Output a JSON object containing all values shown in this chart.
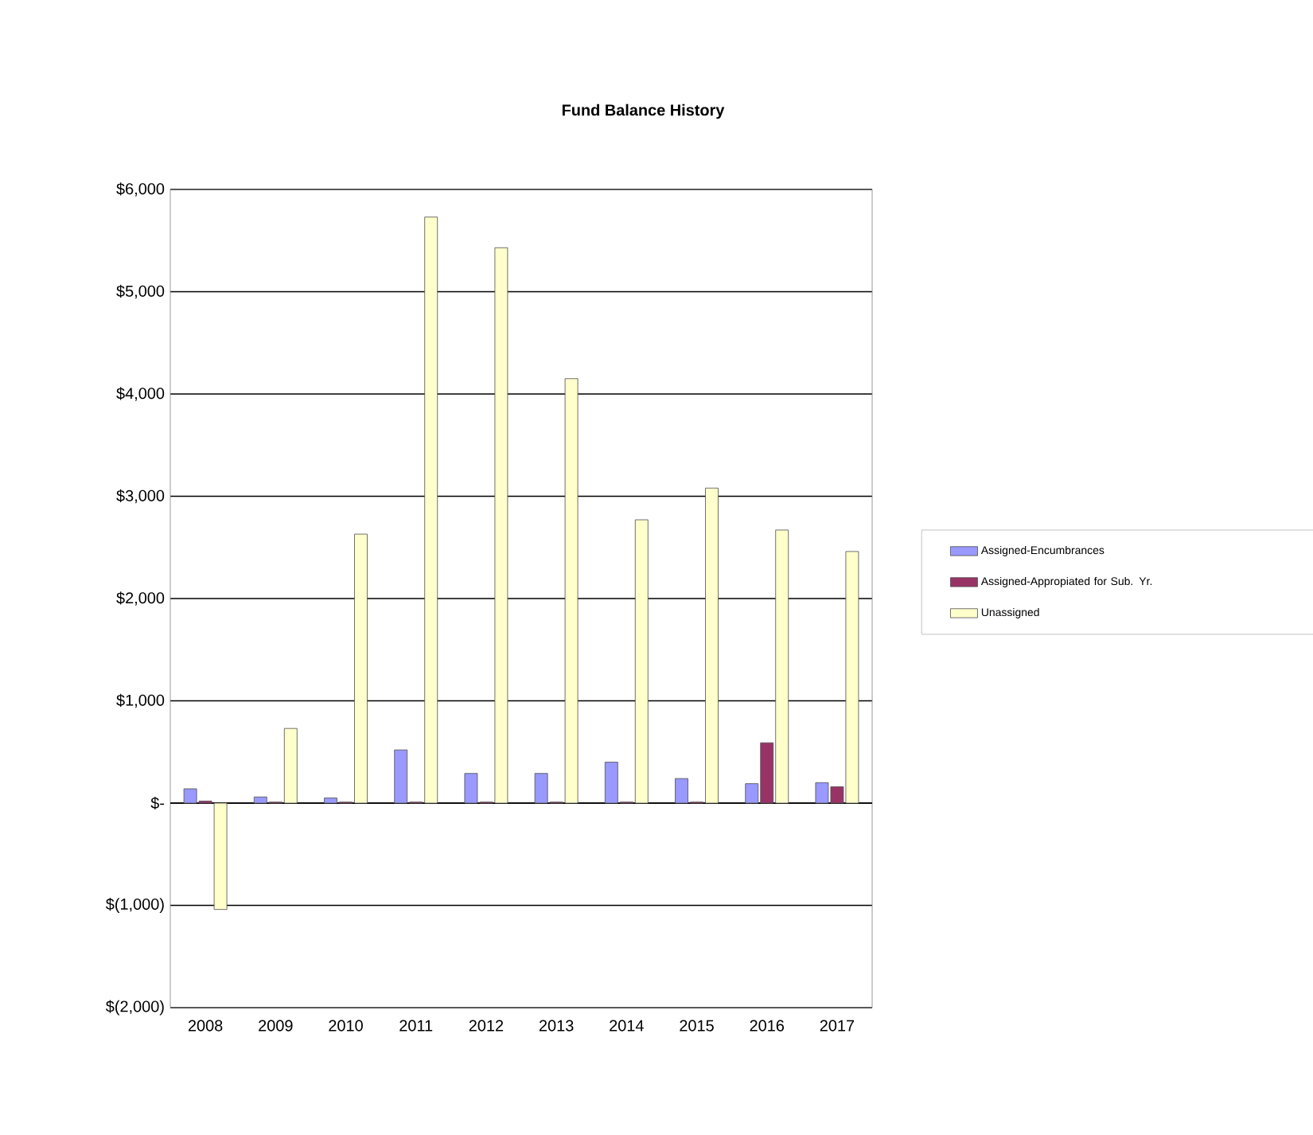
{
  "chart_data": {
    "type": "bar",
    "title": "Fund Balance History",
    "categories": [
      "2008",
      "2009",
      "2010",
      "2011",
      "2012",
      "2013",
      "2014",
      "2015",
      "2016",
      "2017"
    ],
    "series": [
      {
        "name": "Assigned-Encumbrances",
        "color": "#9999ff",
        "values": [
          140,
          60,
          50,
          520,
          290,
          290,
          400,
          240,
          190,
          200
        ]
      },
      {
        "name": "Assigned-Appropiated for Sub. Yr.",
        "color": "#993366",
        "values": [
          20,
          10,
          10,
          10,
          10,
          10,
          10,
          10,
          590,
          160
        ]
      },
      {
        "name": "Unassigned",
        "color": "#ffffcc",
        "values": [
          -1040,
          730,
          2630,
          5730,
          5430,
          4150,
          2770,
          3080,
          2670,
          2460
        ]
      }
    ],
    "ylim": [
      -2000,
      6000
    ],
    "yticks": [
      {
        "value": -2000,
        "label": "$(2,000)"
      },
      {
        "value": -1000,
        "label": "$(1,000)"
      },
      {
        "value": 0,
        "label": "$-"
      },
      {
        "value": 1000,
        "label": "$1,000"
      },
      {
        "value": 2000,
        "label": "$2,000"
      },
      {
        "value": 3000,
        "label": "$3,000"
      },
      {
        "value": 4000,
        "label": "$4,000"
      },
      {
        "value": 5000,
        "label": "$5,000"
      },
      {
        "value": 6000,
        "label": "$6,000"
      }
    ],
    "grid": "y",
    "legend": "right"
  }
}
